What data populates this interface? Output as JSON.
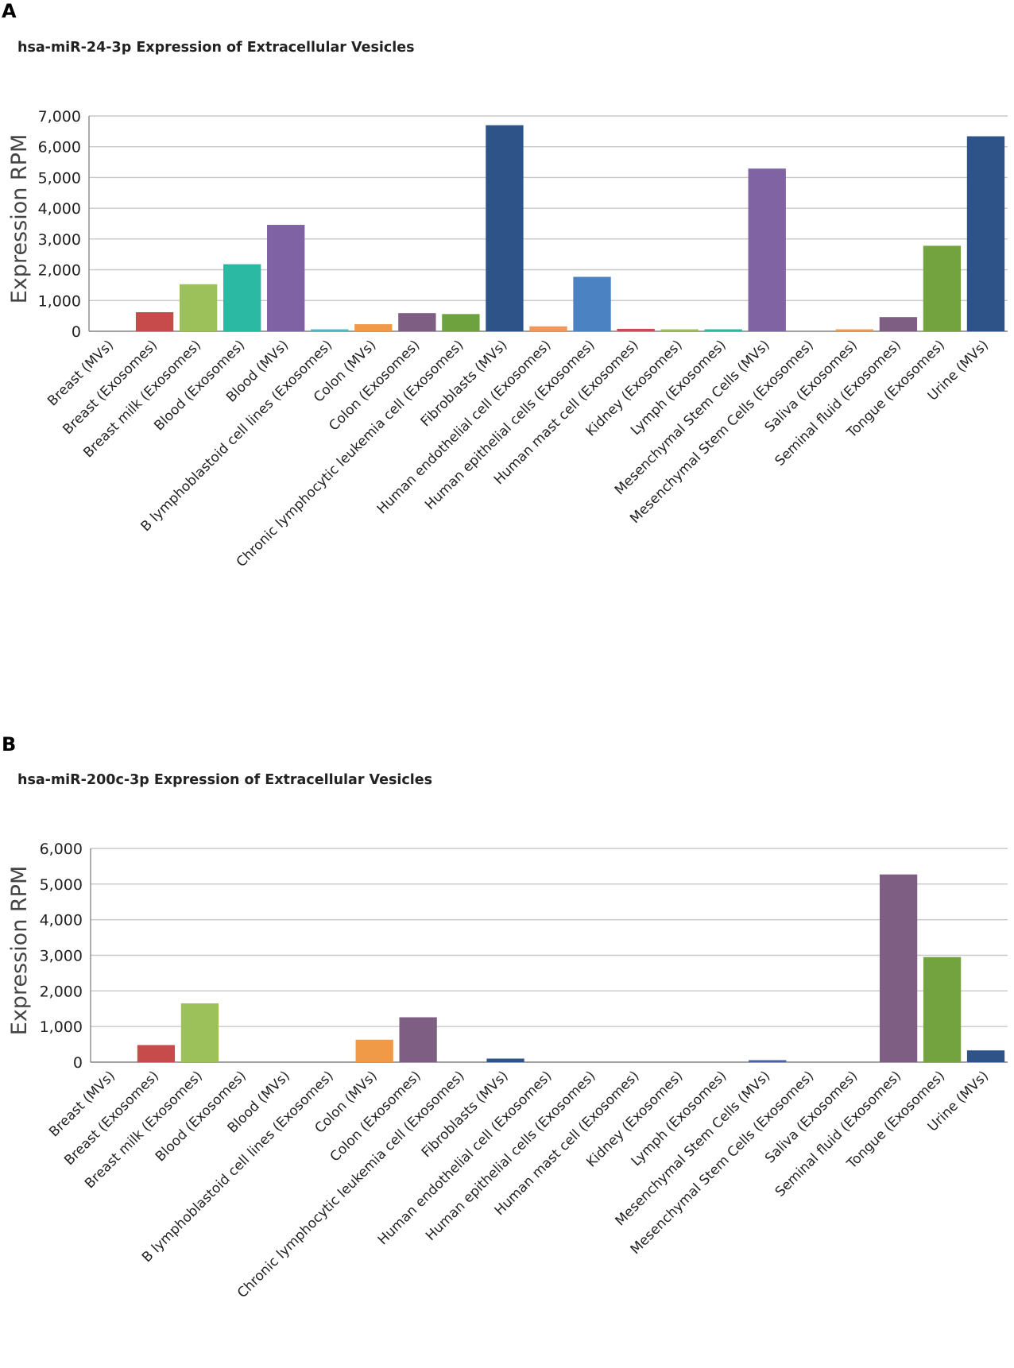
{
  "chart_data": [
    {
      "panel": "A",
      "type": "bar",
      "title": "hsa-miR-24-3p Expression of Extracellular Vesicles",
      "xlabel": "",
      "ylabel": "Expression RPM",
      "ylim": [
        0,
        7000
      ],
      "yticks": [
        0,
        1000,
        2000,
        3000,
        4000,
        5000,
        6000,
        7000
      ],
      "ytick_labels": [
        "0",
        "1,000",
        "2,000",
        "3,000",
        "4,000",
        "5,000",
        "6,000",
        "7,000"
      ],
      "grid": true,
      "categories": [
        "Breast (MVs)",
        "Breast (Exosomes)",
        "Breast milk (Exosomes)",
        "Blood (Exosomes)",
        "Blood (MVs)",
        "B lymphoblastoid cell lines (Exosomes)",
        "Colon (MVs)",
        "Colon (Exosomes)",
        "Chronic lymphocytic leukemia cell (Exosomes)",
        "Fibroblasts (MVs)",
        "Human endothelial cell (Exosomes)",
        "Human epithelial cells (Exosomes)",
        "Human mast cell (Exosomes)",
        "Kidney (Exosomes)",
        "Lymph (Exosomes)",
        "Mesenchymal Stem Cells (MVs)",
        "Mesenchymal Stem Cells (Exosomes)",
        "Saliva (Exosomes)",
        "Seminal fluid (Exosomes)",
        "Tongue (Exosomes)",
        "Urine (MVs)"
      ],
      "values": [
        0,
        620,
        1530,
        2180,
        3460,
        40,
        230,
        590,
        560,
        6700,
        160,
        1770,
        80,
        30,
        40,
        5290,
        0,
        40,
        460,
        2780,
        6340
      ],
      "colors": [
        "#7f5f87",
        "#c84b4b",
        "#9cc05a",
        "#2bb9a3",
        "#7f62a3",
        "#4fb8c5",
        "#f09a48",
        "#7e5f83",
        "#6ea23e",
        "#2d5389",
        "#f0985a",
        "#4a82c2",
        "#c34e4e",
        "#9cbf58",
        "#2bb9a3",
        "#8063a3",
        "#4bb9c3",
        "#f09b4c",
        "#7e5f83",
        "#72a33e",
        "#2d5389"
      ]
    },
    {
      "panel": "B",
      "type": "bar",
      "title": "hsa-miR-200c-3p Expression of Extracellular Vesicles",
      "xlabel": "",
      "ylabel": "Expression RPM",
      "ylim": [
        0,
        6000
      ],
      "yticks": [
        0,
        1000,
        2000,
        3000,
        4000,
        5000,
        6000
      ],
      "ytick_labels": [
        "0",
        "1,000",
        "2,000",
        "3,000",
        "4,000",
        "5,000",
        "6,000"
      ],
      "grid": true,
      "categories": [
        "Breast (MVs)",
        "Breast (Exosomes)",
        "Breast milk (Exosomes)",
        "Blood (Exosomes)",
        "Blood (MVs)",
        "B lymphoblastoid cell lines (Exosomes)",
        "Colon (MVs)",
        "Colon (Exosomes)",
        "Chronic lymphocytic leukemia cell (Exosomes)",
        "Fibroblasts (MVs)",
        "Human endothelial cell (Exosomes)",
        "Human epithelial cells (Exosomes)",
        "Human mast cell (Exosomes)",
        "Kidney (Exosomes)",
        "Lymph (Exosomes)",
        "Mesenchymal Stem Cells (MVs)",
        "Mesenchymal Stem Cells (Exosomes)",
        "Saliva (Exosomes)",
        "Seminal fluid (Exosomes)",
        "Tongue (Exosomes)",
        "Urine (MVs)"
      ],
      "values": [
        0,
        480,
        1650,
        0,
        0,
        0,
        630,
        1260,
        0,
        100,
        0,
        0,
        0,
        0,
        0,
        40,
        0,
        0,
        5270,
        2950,
        330
      ],
      "colors": [
        "#7f5f87",
        "#c84b4b",
        "#9cc05a",
        "#2bb9a3",
        "#7f62a3",
        "#4fb8c5",
        "#f09a48",
        "#7e5f83",
        "#6ea23e",
        "#2d5389",
        "#f0985a",
        "#4a82c2",
        "#c34e4e",
        "#9cbf58",
        "#2bb9a3",
        "#4a62a3",
        "#4bb9c3",
        "#f09b4c",
        "#7e5f83",
        "#72a33e",
        "#2d5389"
      ]
    }
  ],
  "style": {
    "grid_color": "#c8c8c8",
    "axis_color": "#8a8a8a",
    "text_color": "#222222"
  }
}
